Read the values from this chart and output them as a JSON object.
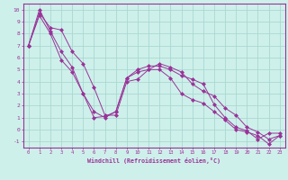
{
  "title": "",
  "xlabel": "Windchill (Refroidissement éolien,°C)",
  "bg_color": "#cef0ea",
  "grid_color": "#aad8d2",
  "line_color": "#993399",
  "xlim": [
    -0.5,
    23.5
  ],
  "ylim": [
    -1.5,
    10.5
  ],
  "xticks": [
    0,
    1,
    2,
    3,
    4,
    5,
    6,
    7,
    8,
    9,
    10,
    11,
    12,
    13,
    14,
    15,
    16,
    17,
    18,
    19,
    20,
    21,
    22,
    23
  ],
  "yticks": [
    -1,
    0,
    1,
    2,
    3,
    4,
    5,
    6,
    7,
    8,
    9,
    10
  ],
  "series": [
    [
      7.0,
      10.0,
      8.2,
      6.5,
      5.2,
      3.0,
      1.0,
      1.1,
      1.5,
      4.3,
      5.0,
      5.3,
      5.3,
      5.0,
      4.5,
      4.2,
      3.8,
      2.1,
      1.0,
      0.2,
      -0.1,
      -0.8,
      -0.3,
      -0.3
    ],
    [
      7.0,
      9.7,
      8.5,
      8.3,
      6.5,
      5.5,
      3.5,
      1.2,
      1.2,
      4.0,
      4.2,
      5.0,
      5.5,
      5.2,
      4.8,
      3.8,
      3.2,
      2.8,
      1.8,
      1.2,
      0.2,
      -0.2,
      -0.8,
      -0.5
    ],
    [
      7.0,
      9.5,
      8.0,
      5.8,
      4.8,
      3.0,
      1.5,
      1.0,
      1.5,
      4.3,
      4.8,
      5.0,
      5.0,
      4.3,
      3.0,
      2.5,
      2.2,
      1.5,
      0.8,
      0.0,
      -0.2,
      -0.5,
      -1.2,
      -0.5
    ]
  ]
}
